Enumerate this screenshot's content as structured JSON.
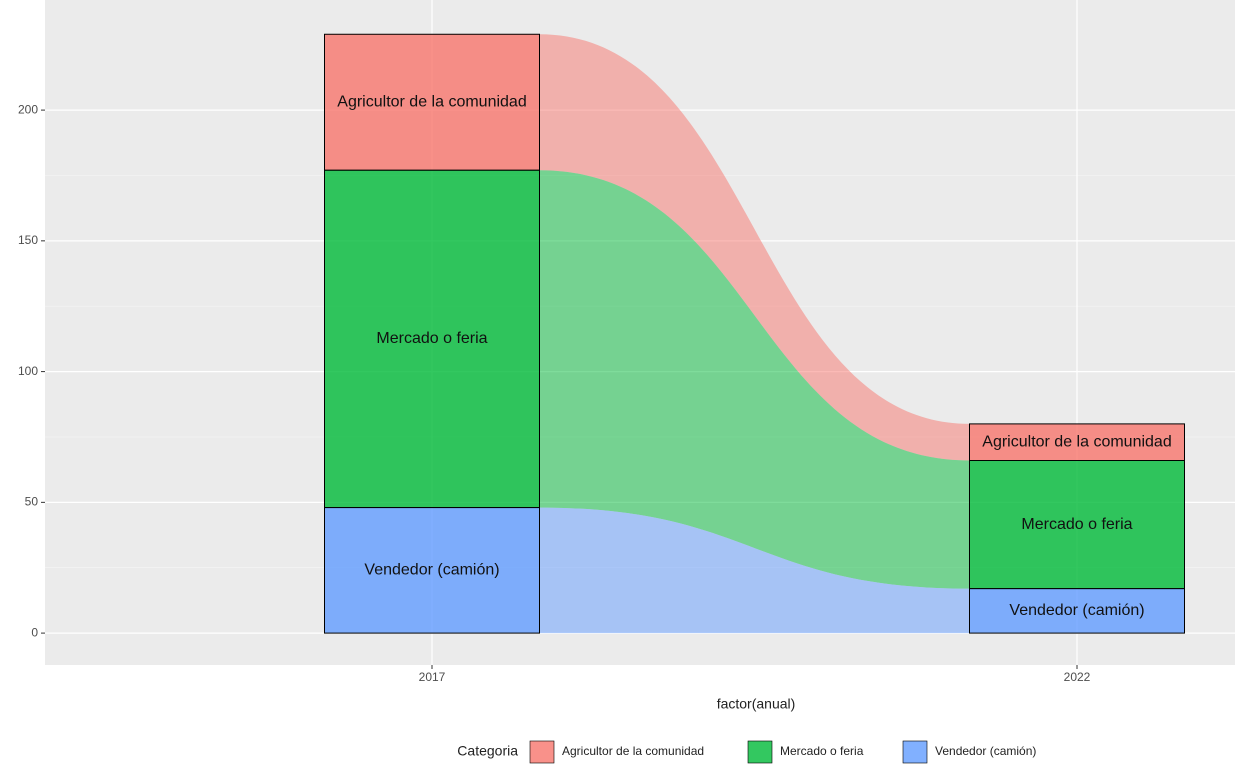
{
  "chart_data": {
    "type": "alluvial",
    "categories": [
      "2017",
      "2022"
    ],
    "series": [
      {
        "name": "Agricultor de la comunidad",
        "color": "#F8766D",
        "values": [
          52,
          14
        ]
      },
      {
        "name": "Mercado o feria",
        "color": "#00BA38",
        "values": [
          129,
          49
        ]
      },
      {
        "name": "Vendedor (camión)",
        "color": "#619CFF",
        "values": [
          48,
          17
        ]
      }
    ],
    "ylim": [
      -12.2,
      242.1
    ],
    "yticks": [
      0,
      50,
      100,
      150,
      200
    ],
    "grid": true,
    "x_label": "factor(anual)",
    "legend_title": "Categoria",
    "legend": "bottom"
  }
}
